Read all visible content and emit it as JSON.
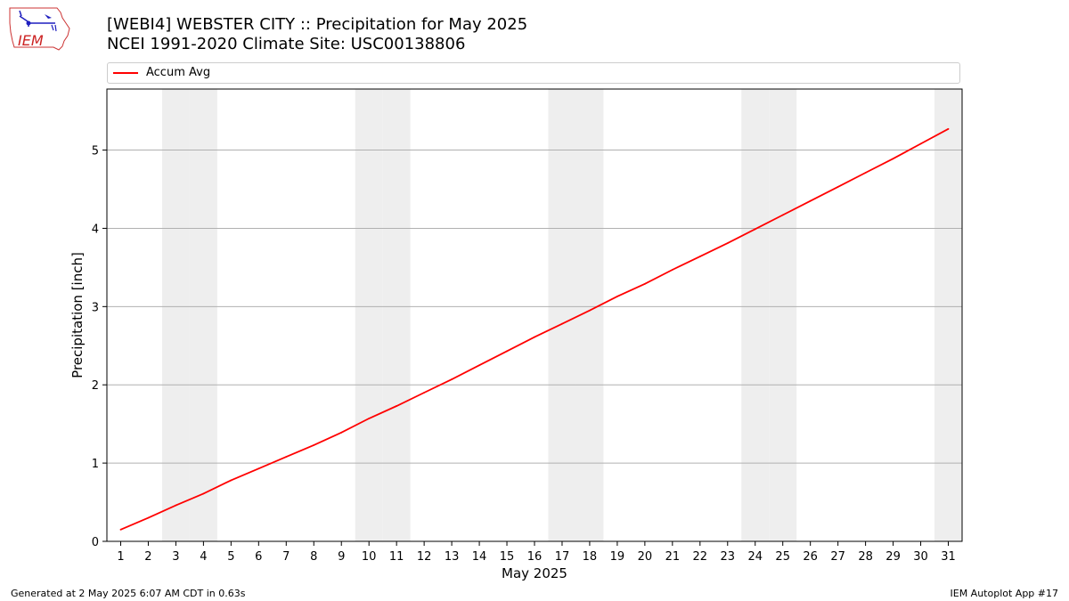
{
  "header": {
    "title_line1": "[WEBI4] WEBSTER CITY :: Precipitation for May 2025",
    "title_line2": "NCEI 1991-2020 Climate Site: USC00138806"
  },
  "logo": {
    "text": "IEM",
    "icon": "iem-iowa-logo-icon"
  },
  "legend": {
    "label": "Accum Avg",
    "color": "#ff0000"
  },
  "footer": {
    "left": "Generated at 2 May 2025 6:07 AM CDT in 0.63s",
    "right": "IEM Autoplot App #17"
  },
  "colors": {
    "line": "#ff0000",
    "weekend_band": "#eeeeee",
    "grid": "#b0b0b0"
  },
  "chart_data": {
    "type": "line",
    "xlabel": "May 2025",
    "ylabel": "Precipitation [inch]",
    "xlim": [
      0.5,
      31.5
    ],
    "ylim": [
      0,
      5.78
    ],
    "yticks": [
      0,
      1,
      2,
      3,
      4,
      5
    ],
    "grid": "horizontal",
    "legend_position": "top",
    "weekend_days": [
      3,
      4,
      10,
      11,
      17,
      18,
      24,
      25,
      31
    ],
    "x": [
      1,
      2,
      3,
      4,
      5,
      6,
      7,
      8,
      9,
      10,
      11,
      12,
      13,
      14,
      15,
      16,
      17,
      18,
      19,
      20,
      21,
      22,
      23,
      24,
      25,
      26,
      27,
      28,
      29,
      30,
      31
    ],
    "series": [
      {
        "name": "Accum Avg",
        "values": [
          0.15,
          0.3,
          0.46,
          0.61,
          0.78,
          0.93,
          1.08,
          1.23,
          1.39,
          1.57,
          1.73,
          1.9,
          2.07,
          2.25,
          2.43,
          2.61,
          2.78,
          2.95,
          3.13,
          3.29,
          3.47,
          3.64,
          3.81,
          3.99,
          4.17,
          4.35,
          4.53,
          4.71,
          4.89,
          5.08,
          5.27
        ]
      }
    ]
  }
}
